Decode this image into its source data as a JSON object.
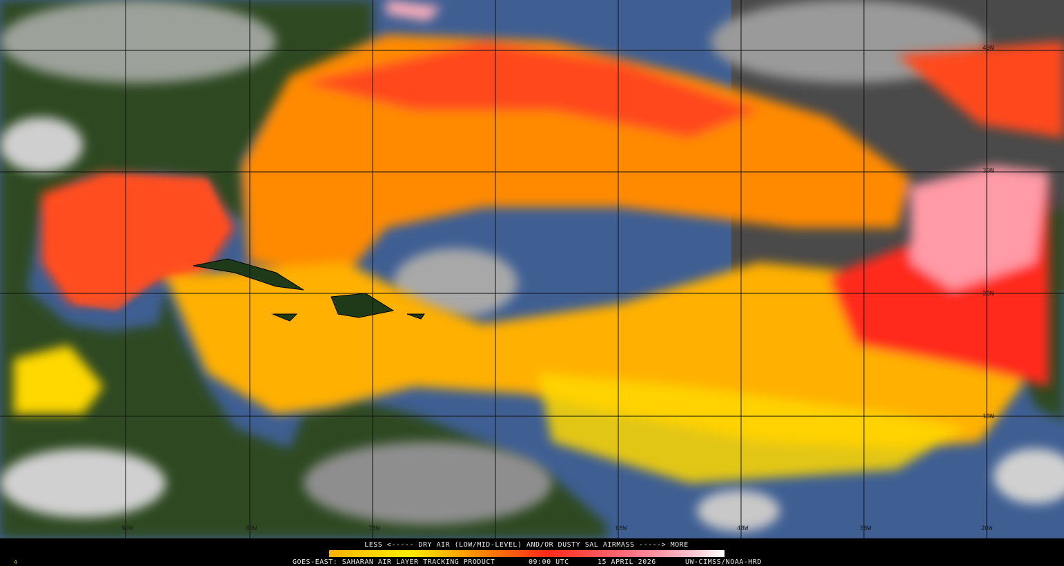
{
  "map": {
    "lat_labels": [
      "40N",
      "30N",
      "20N",
      "10N"
    ],
    "lon_labels": [
      "90W",
      "80W",
      "70W",
      "60W",
      "40W",
      "30W",
      "20W"
    ]
  },
  "legend": {
    "caption": "LESS <----- DRY AIR (LOW/MID-LEVEL) AND/OR DUSTY SAL AIRMASS -----> MORE",
    "footer": [
      "GOES-EAST: SAHARAN AIR LAYER TRACKING PRODUCT",
      "09:00 UTC",
      "15 APRIL 2026",
      "UW-CIMSS/NOAA-HRD"
    ]
  },
  "frame_number": "4"
}
